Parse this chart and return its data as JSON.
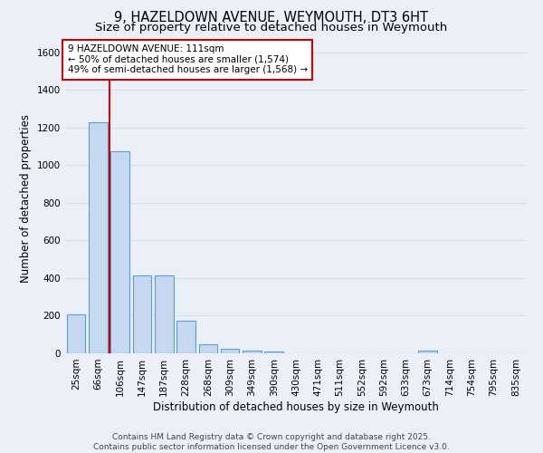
{
  "title": "9, HAZELDOWN AVENUE, WEYMOUTH, DT3 6HT",
  "subtitle": "Size of property relative to detached houses in Weymouth",
  "xlabel": "Distribution of detached houses by size in Weymouth",
  "ylabel": "Number of detached properties",
  "categories": [
    "25sqm",
    "66sqm",
    "106sqm",
    "147sqm",
    "187sqm",
    "228sqm",
    "268sqm",
    "309sqm",
    "349sqm",
    "390sqm",
    "430sqm",
    "471sqm",
    "511sqm",
    "552sqm",
    "592sqm",
    "633sqm",
    "673sqm",
    "714sqm",
    "754sqm",
    "795sqm",
    "835sqm"
  ],
  "values": [
    205,
    1230,
    1075,
    415,
    415,
    175,
    50,
    25,
    15,
    10,
    0,
    0,
    0,
    0,
    0,
    0,
    15,
    0,
    0,
    0,
    0
  ],
  "bar_color": "#c5d8ef",
  "bar_edge_color": "#5a9fd4",
  "vline_x": 1.5,
  "vline_color": "#cc0000",
  "annotation_text": "9 HAZELDOWN AVENUE: 111sqm\n← 50% of detached houses are smaller (1,574)\n49% of semi-detached houses are larger (1,568) →",
  "annotation_box_color": "#ffffff",
  "annotation_box_edge_color": "#cc0000",
  "ylim": [
    0,
    1650
  ],
  "yticks": [
    0,
    200,
    400,
    600,
    800,
    1000,
    1200,
    1400,
    1600
  ],
  "background_color": "#eaeff8",
  "grid_color": "#d8dfe8",
  "footnote": "Contains HM Land Registry data © Crown copyright and database right 2025.\nContains public sector information licensed under the Open Government Licence v3.0.",
  "title_fontsize": 10.5,
  "subtitle_fontsize": 9.5,
  "xlabel_fontsize": 8.5,
  "ylabel_fontsize": 8.5,
  "tick_fontsize": 7.5,
  "annotation_fontsize": 7.5,
  "footnote_fontsize": 6.5
}
